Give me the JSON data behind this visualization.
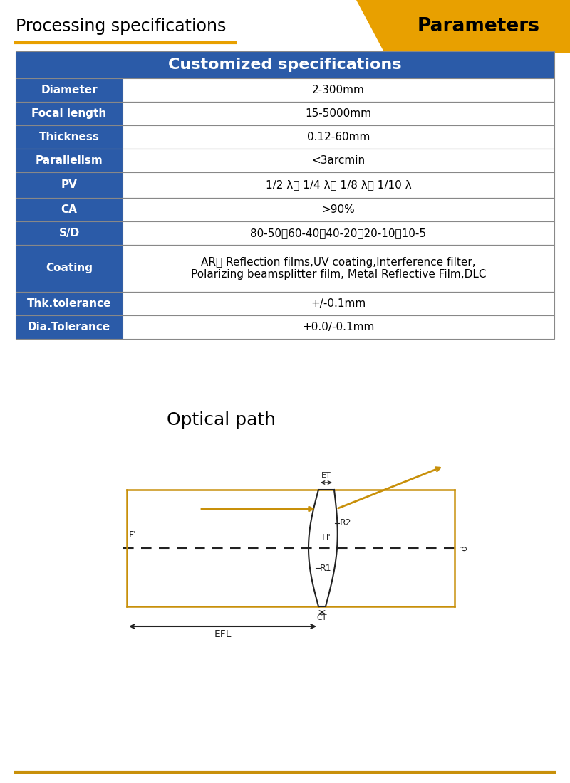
{
  "title_left": "Processing specifications",
  "title_right": "Parameters",
  "banner_color": "#E8A000",
  "underline_color": "#E8A000",
  "table_header": "Customized specifications",
  "table_header_bg": "#2B5BA8",
  "table_header_fg": "#FFFFFF",
  "row_label_bg": "#2B5BA8",
  "row_label_fg": "#FFFFFF",
  "row_value_bg": "#FFFFFF",
  "row_value_fg": "#000000",
  "table_border_color": "#888888",
  "rows": [
    [
      "Diameter",
      "2-300mm"
    ],
    [
      "Focal length",
      "15-5000mm"
    ],
    [
      "Thickness",
      "0.12-60mm"
    ],
    [
      "Parallelism",
      "<3arcmin"
    ],
    [
      "PV",
      "1/2 λ、 1/4 λ、 1/8 λ、 1/10 λ"
    ],
    [
      "CA",
      ">90%"
    ],
    [
      "S/D",
      "80-50、60-40、40-20、20-10、10-5"
    ],
    [
      "Coating",
      "AR、 Reflection films,UV coating,Interference filter,\nPolarizing beamsplitter film, Metal Reflective Film,DLC"
    ],
    [
      "Thk.tolerance",
      "+/-0.1mm"
    ],
    [
      "Dia.Tolerance",
      "+0.0/-0.1mm"
    ]
  ],
  "optical_path_title": "Optical path",
  "diagram_color": "#222222",
  "lens_color": "#C8900A",
  "ray_color": "#C8900A",
  "bottom_line_color": "#C8900A"
}
